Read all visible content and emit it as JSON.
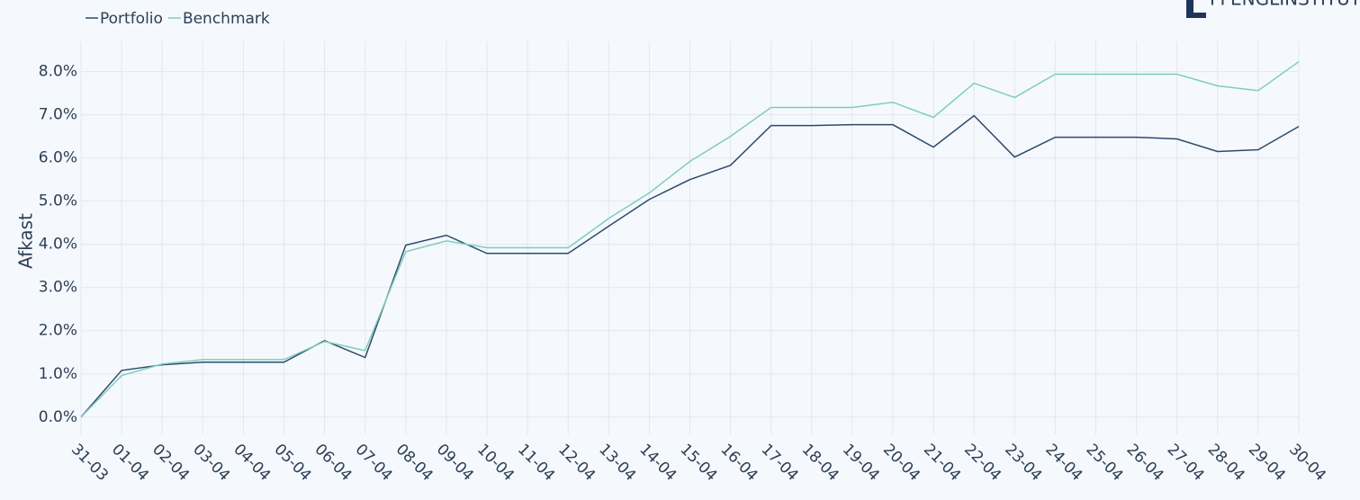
{
  "chart_data": {
    "type": "line",
    "logo": "FFENGLINSTITUT",
    "y_label": "Afkast",
    "categories": [
      "31-03",
      "01-04",
      "02-04",
      "03-04",
      "04-04",
      "05-04",
      "06-04",
      "07-04",
      "08-04",
      "09-04",
      "10-04",
      "11-04",
      "12-04",
      "13-04",
      "14-04",
      "15-04",
      "16-04",
      "17-04",
      "18-04",
      "19-04",
      "20-04",
      "21-04",
      "22-04",
      "23-04",
      "24-04",
      "25-04",
      "26-04",
      "27-04",
      "28-04",
      "29-04",
      "30-04"
    ],
    "series": [
      {
        "name": "Portfolio",
        "color": "#2d4a6b",
        "values": [
          0,
          1.08,
          1.21,
          1.27,
          1.27,
          1.27,
          1.77,
          1.38,
          3.98,
          4.21,
          3.79,
          3.79,
          3.79,
          4.42,
          5.04,
          5.5,
          5.83,
          6.75,
          6.75,
          6.77,
          6.77,
          6.25,
          6.98,
          6.02,
          6.48,
          6.48,
          6.48,
          6.44,
          6.15,
          6.19,
          6.73
        ]
      },
      {
        "name": "Benchmark",
        "color": "#7fcdbb",
        "values": [
          0,
          0.96,
          1.23,
          1.33,
          1.33,
          1.33,
          1.75,
          1.54,
          3.83,
          4.08,
          3.92,
          3.92,
          3.92,
          4.6,
          5.19,
          5.92,
          6.5,
          7.17,
          7.17,
          7.17,
          7.29,
          6.94,
          7.73,
          7.4,
          7.94,
          7.94,
          7.94,
          7.94,
          7.67,
          7.56,
          8.23
        ]
      }
    ],
    "ylim": [
      -0.4,
      8.7
    ],
    "yticks": [
      {
        "value": 0,
        "label": "0.0%"
      },
      {
        "value": 1,
        "label": "1.0%"
      },
      {
        "value": 2,
        "label": "2.0%"
      },
      {
        "value": 3,
        "label": "3.0%"
      },
      {
        "value": 4,
        "label": "4.0%"
      },
      {
        "value": 5,
        "label": "5.0%"
      },
      {
        "value": 6,
        "label": "6.0%"
      },
      {
        "value": 7,
        "label": "7.0%"
      },
      {
        "value": 8,
        "label": "8.0%"
      }
    ],
    "grid": true,
    "legend": "top-left"
  }
}
